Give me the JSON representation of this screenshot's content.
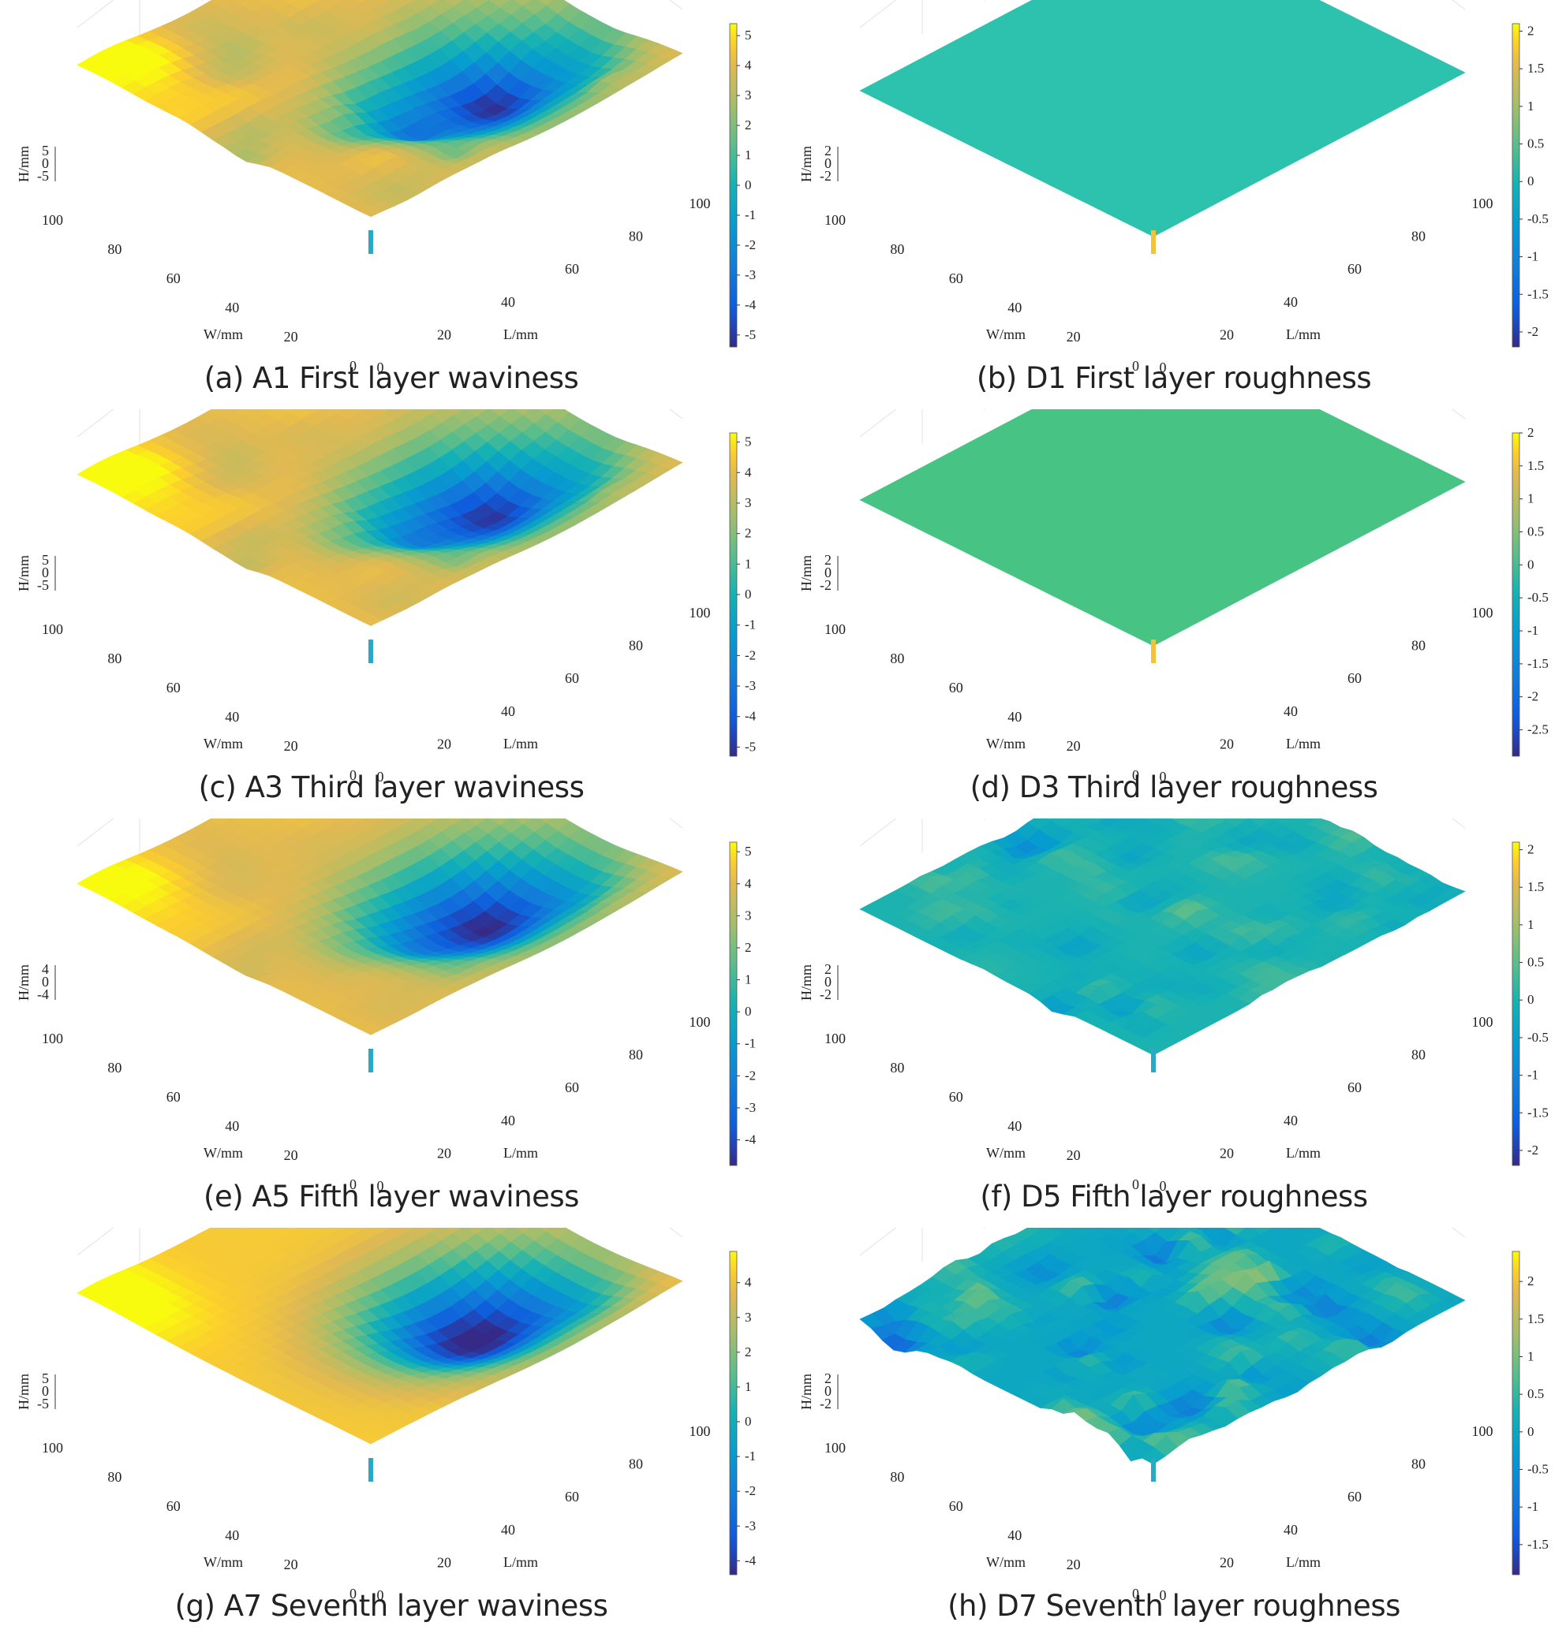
{
  "chart_data": [
    {
      "type": "surface",
      "label": "(a)",
      "caption": "A1 First layer waviness",
      "kind": "waviness",
      "seed": 1,
      "smooth": 0.0,
      "zlabel": "H/mm",
      "xlabel": "L/mm",
      "ylabel": "W/mm",
      "zticks": [
        "5",
        "0",
        "-5"
      ],
      "xticks": [
        "0",
        "20",
        "40",
        "60",
        "80",
        "100"
      ],
      "yticks": [
        "0",
        "20",
        "40",
        "60",
        "80",
        "100"
      ],
      "colorbar_ticks": [
        "5",
        "4",
        "3",
        "2",
        "1",
        "0",
        "-1",
        "-2",
        "-3",
        "-4",
        "-5"
      ],
      "clim": [
        -5.4,
        5.4
      ]
    },
    {
      "type": "surface",
      "label": "(b)",
      "caption": "D1 First layer roughness",
      "kind": "flat",
      "seed": 2,
      "zlabel": "H/mm",
      "xlabel": "L/mm",
      "ylabel": "W/mm",
      "zticks": [
        "2",
        "0",
        "-2"
      ],
      "xticks": [
        "0",
        "20",
        "40",
        "60",
        "80",
        "100"
      ],
      "yticks": [
        "0",
        "20",
        "40",
        "60",
        "80",
        "100"
      ],
      "colorbar_ticks": [
        "2",
        "1.5",
        "1",
        "0.5",
        "0",
        "-0.5",
        "-1",
        "-1.5",
        "-2"
      ],
      "clim": [
        -2.2,
        2.1
      ],
      "fill": "#2cc2ae"
    },
    {
      "type": "surface",
      "label": "(c)",
      "caption": "A3 Third layer waviness",
      "kind": "waviness",
      "seed": 1,
      "smooth": 0.3,
      "zlabel": "H/mm",
      "xlabel": "L/mm",
      "ylabel": "W/mm",
      "zticks": [
        "5",
        "0",
        "-5"
      ],
      "xticks": [
        "0",
        "20",
        "40",
        "60",
        "80",
        "100"
      ],
      "yticks": [
        "0",
        "20",
        "40",
        "60",
        "80",
        "100"
      ],
      "colorbar_ticks": [
        "5",
        "4",
        "3",
        "2",
        "1",
        "0",
        "-1",
        "-2",
        "-3",
        "-4",
        "-5"
      ],
      "clim": [
        -5.3,
        5.3
      ]
    },
    {
      "type": "surface",
      "label": "(d)",
      "caption": "D3 Third layer roughness",
      "kind": "flat",
      "seed": 4,
      "zlabel": "H/mm",
      "xlabel": "L/mm",
      "ylabel": "W/mm",
      "zticks": [
        "2",
        "0",
        "-2"
      ],
      "xticks": [
        "0",
        "20",
        "40",
        "60",
        "80",
        "100"
      ],
      "yticks": [
        "0",
        "20",
        "40",
        "60",
        "80",
        "100"
      ],
      "colorbar_ticks": [
        "2",
        "1.5",
        "1",
        "0.5",
        "0",
        "-0.5",
        "-1",
        "-1.5",
        "-2",
        "-2.5"
      ],
      "clim": [
        -2.9,
        2.0
      ],
      "fill": "#47c483"
    },
    {
      "type": "surface",
      "label": "(e)",
      "caption": "A5 Fifth layer waviness",
      "kind": "waviness",
      "seed": 1,
      "smooth": 0.6,
      "zlabel": "H/mm",
      "xlabel": "L/mm",
      "ylabel": "W/mm",
      "zticks": [
        "4",
        "0",
        "-4"
      ],
      "xticks": [
        "0",
        "20",
        "40",
        "60",
        "80",
        "100"
      ],
      "yticks": [
        "0",
        "20",
        "40",
        "60",
        "80",
        "100"
      ],
      "colorbar_ticks": [
        "5",
        "4",
        "3",
        "2",
        "1",
        "0",
        "-1",
        "-2",
        "-3",
        "-4"
      ],
      "clim": [
        -4.8,
        5.3
      ]
    },
    {
      "type": "surface",
      "label": "(f)",
      "caption": "D5 Fifth layer roughness",
      "kind": "rough",
      "seed": 6,
      "amp": 0.45,
      "zlabel": "H/mm",
      "xlabel": "L/mm",
      "ylabel": "W/mm",
      "zticks": [
        "2",
        "0",
        "-2"
      ],
      "xticks": [
        "0",
        "20",
        "40",
        "60",
        "80",
        "100"
      ],
      "yticks": [
        "0",
        "20",
        "40",
        "60",
        "80",
        "100"
      ],
      "colorbar_ticks": [
        "2",
        "1.5",
        "1",
        "0.5",
        "0",
        "-0.5",
        "-1",
        "-1.5",
        "-2"
      ],
      "clim": [
        -2.2,
        2.1
      ]
    },
    {
      "type": "surface",
      "label": "(g)",
      "caption": "A7 Seventh layer waviness",
      "kind": "waviness",
      "seed": 1,
      "smooth": 1.0,
      "zlabel": "H/mm",
      "xlabel": "L/mm",
      "ylabel": "W/mm",
      "zticks": [
        "5",
        "0",
        "-5"
      ],
      "xticks": [
        "0",
        "20",
        "40",
        "60",
        "80",
        "100"
      ],
      "yticks": [
        "0",
        "20",
        "40",
        "60",
        "80",
        "100"
      ],
      "colorbar_ticks": [
        "4",
        "3",
        "2",
        "1",
        "0",
        "-1",
        "-2",
        "-3",
        "-4"
      ],
      "clim": [
        -4.4,
        4.9
      ]
    },
    {
      "type": "surface",
      "label": "(h)",
      "caption": "D7 Seventh layer roughness",
      "kind": "rough",
      "seed": 8,
      "amp": 1.0,
      "zlabel": "H/mm",
      "xlabel": "L/mm",
      "ylabel": "W/mm",
      "zticks": [
        "2",
        "0",
        "-2"
      ],
      "xticks": [
        "0",
        "20",
        "40",
        "60",
        "80",
        "100"
      ],
      "yticks": [
        "0",
        "20",
        "40",
        "60",
        "80",
        "100"
      ],
      "colorbar_ticks": [
        "2",
        "1.5",
        "1",
        "0.5",
        "0",
        "-0.5",
        "-1",
        "-1.5"
      ],
      "clim": [
        -1.9,
        2.4
      ]
    }
  ],
  "colormap": "parula"
}
